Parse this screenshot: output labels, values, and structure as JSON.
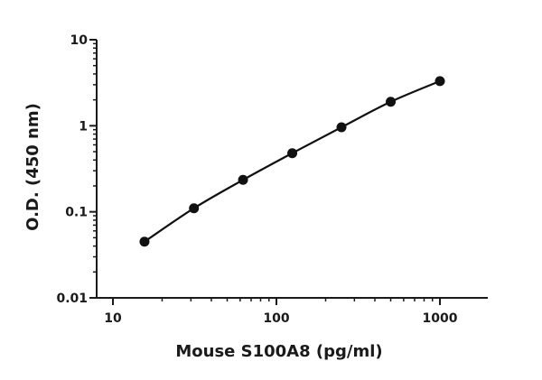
{
  "chart_data": {
    "type": "scatter",
    "title": "",
    "xlabel": "Mouse S100A8 (pg/ml)",
    "ylabel": "O.D. (450 nm)",
    "x_scale": "log",
    "y_scale": "log",
    "xlim": [
      10,
      1000
    ],
    "ylim": [
      0.01,
      10
    ],
    "x_ticks": [
      10,
      100,
      1000
    ],
    "x_tick_labels": [
      "10",
      "100",
      "1000"
    ],
    "y_ticks": [
      0.01,
      0.1,
      1,
      10
    ],
    "y_tick_labels": [
      "0.01",
      "0.1",
      "1",
      "10"
    ],
    "grid": false,
    "legend": "none",
    "series": [
      {
        "points": [
          {
            "x": 15.6,
            "y": 0.045
          },
          {
            "x": 31.3,
            "y": 0.11
          },
          {
            "x": 62.5,
            "y": 0.235
          },
          {
            "x": 125,
            "y": 0.48
          },
          {
            "x": 250,
            "y": 0.96
          },
          {
            "x": 500,
            "y": 1.9
          },
          {
            "x": 1000,
            "y": 3.3
          }
        ],
        "fit_line": true,
        "color": "#111111"
      }
    ]
  }
}
